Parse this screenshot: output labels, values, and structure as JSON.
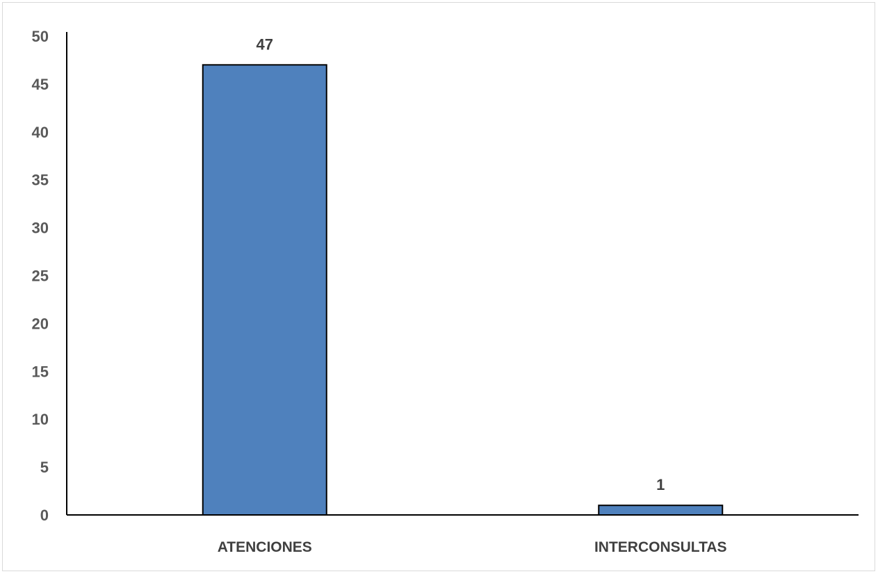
{
  "chart_data": {
    "type": "bar",
    "title": "",
    "xlabel": "",
    "ylabel": "",
    "categories": [
      "ATENCIONES",
      "INTERCONSULTAS"
    ],
    "values": [
      47,
      1
    ],
    "data_labels": [
      "47",
      "1"
    ],
    "ylim": [
      0,
      50
    ],
    "yticks": [
      0,
      5,
      10,
      15,
      20,
      25,
      30,
      35,
      40,
      45,
      50
    ],
    "ytick_labels": [
      "0",
      "5",
      "10",
      "15",
      "20",
      "25",
      "30",
      "35",
      "40",
      "45",
      "50"
    ],
    "grid": false,
    "legend": "none",
    "bar_color": "#4f81bd",
    "bar_outline_color": "#000000"
  }
}
